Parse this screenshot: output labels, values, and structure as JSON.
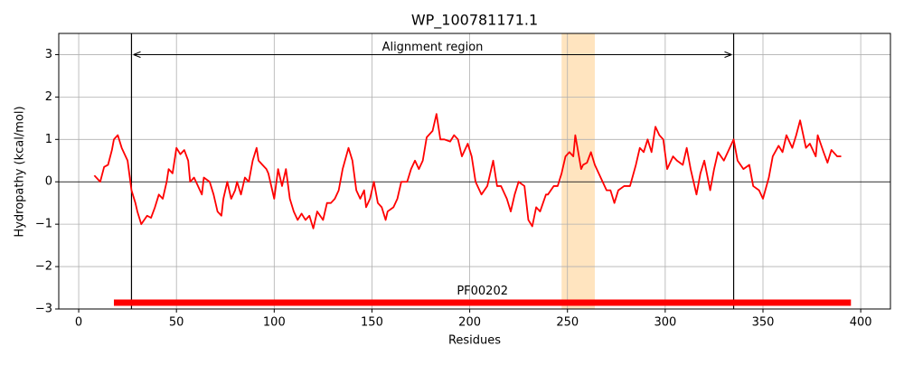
{
  "chart_data": {
    "type": "line",
    "title": "WP_100781171.1",
    "xlabel": "Residues",
    "ylabel": "Hydropathy (kcal/mol)",
    "x": [
      8,
      11,
      13,
      15,
      17,
      18,
      20,
      22,
      25,
      27,
      29,
      30,
      32,
      35,
      37,
      39,
      41,
      43,
      45,
      46,
      48,
      50,
      52,
      54,
      56,
      57,
      59,
      61,
      63,
      64,
      67,
      69,
      71,
      73,
      74,
      76,
      78,
      80,
      81,
      83,
      85,
      87,
      89,
      91,
      92,
      94,
      96,
      97,
      100,
      102,
      104,
      106,
      108,
      110,
      112,
      114,
      116,
      118,
      120,
      122,
      125,
      127,
      129,
      131,
      133,
      135,
      138,
      140,
      142,
      144,
      146,
      147,
      149,
      151,
      153,
      155,
      157,
      158,
      161,
      163,
      165,
      168,
      170,
      172,
      174,
      176,
      178,
      181,
      183,
      185,
      187,
      190,
      192,
      194,
      196,
      199,
      201,
      203,
      206,
      209,
      212,
      214,
      216,
      219,
      221,
      223,
      225,
      228,
      230,
      232,
      234,
      236,
      239,
      240,
      243,
      245,
      247,
      249,
      251,
      253,
      254,
      257,
      258,
      260,
      262,
      264,
      266,
      268,
      270,
      272,
      274,
      276,
      279,
      282,
      285,
      287,
      289,
      291,
      293,
      295,
      297,
      299,
      301,
      304,
      306,
      309,
      311,
      313,
      316,
      318,
      320,
      323,
      325,
      327,
      330,
      332,
      335,
      337,
      340,
      343,
      345,
      348,
      350,
      353,
      355,
      358,
      360,
      362,
      365,
      367,
      369,
      372,
      374,
      377,
      378,
      381,
      383,
      385,
      388,
      390
    ],
    "values": [
      0.15,
      0.0,
      0.35,
      0.4,
      0.75,
      1.0,
      1.1,
      0.8,
      0.5,
      -0.2,
      -0.5,
      -0.7,
      -1.0,
      -0.8,
      -0.85,
      -0.6,
      -0.3,
      -0.4,
      0.0,
      0.3,
      0.2,
      0.8,
      0.65,
      0.75,
      0.5,
      0.0,
      0.1,
      -0.1,
      -0.3,
      0.1,
      0.0,
      -0.3,
      -0.7,
      -0.8,
      -0.4,
      0.0,
      -0.4,
      -0.2,
      0.0,
      -0.3,
      0.1,
      0.0,
      0.5,
      0.8,
      0.5,
      0.4,
      0.3,
      0.2,
      -0.4,
      0.3,
      -0.1,
      0.3,
      -0.4,
      -0.7,
      -0.9,
      -0.75,
      -0.9,
      -0.8,
      -1.1,
      -0.7,
      -0.9,
      -0.5,
      -0.5,
      -0.4,
      -0.2,
      0.3,
      0.8,
      0.5,
      -0.2,
      -0.4,
      -0.2,
      -0.6,
      -0.4,
      0.0,
      -0.5,
      -0.6,
      -0.9,
      -0.7,
      -0.6,
      -0.4,
      0.0,
      0.0,
      0.3,
      0.5,
      0.3,
      0.5,
      1.05,
      1.2,
      1.6,
      1.0,
      1.0,
      0.95,
      1.1,
      1.0,
      0.6,
      0.9,
      0.6,
      0.0,
      -0.3,
      -0.1,
      0.5,
      -0.1,
      -0.1,
      -0.4,
      -0.7,
      -0.3,
      0.0,
      -0.1,
      -0.9,
      -1.05,
      -0.6,
      -0.7,
      -0.3,
      -0.3,
      -0.1,
      -0.1,
      0.2,
      0.6,
      0.7,
      0.6,
      1.1,
      0.3,
      0.4,
      0.45,
      0.7,
      0.4,
      0.2,
      0.0,
      -0.2,
      -0.2,
      -0.5,
      -0.2,
      -0.1,
      -0.1,
      0.4,
      0.8,
      0.7,
      1.0,
      0.7,
      1.3,
      1.1,
      1.0,
      0.3,
      0.6,
      0.5,
      0.4,
      0.8,
      0.3,
      -0.3,
      0.2,
      0.5,
      -0.2,
      0.3,
      0.7,
      0.5,
      0.7,
      1.0,
      0.5,
      0.3,
      0.4,
      -0.1,
      -0.2,
      -0.4,
      0.1,
      0.6,
      0.85,
      0.7,
      1.1,
      0.8,
      1.1,
      1.45,
      0.8,
      0.9,
      0.6,
      1.1,
      0.7,
      0.45,
      0.75,
      0.6,
      0.6
    ],
    "color": "#ff0000",
    "xlim": [
      -10.2,
      415.2
    ],
    "ylim": [
      -3,
      3.5
    ],
    "xticks": [
      0,
      50,
      100,
      150,
      200,
      250,
      300,
      350,
      400
    ],
    "yticks": [
      {
        "value": -3,
        "label": "−3"
      },
      {
        "value": -2,
        "label": "−2"
      },
      {
        "value": -1,
        "label": "−1"
      },
      0,
      1,
      2,
      3
    ],
    "grid": true,
    "hline": 0,
    "vlines": [
      27,
      335
    ],
    "span": [
      247,
      264
    ],
    "span_color": "#ffe4bf",
    "annotation": {
      "text": "Alignment region",
      "start": 28,
      "end": 334,
      "y": 3
    },
    "domain": {
      "label": "PF00202",
      "start": 18,
      "end": 395,
      "y": -2.85,
      "label_y": -2.58,
      "color": "#ff0000"
    }
  }
}
